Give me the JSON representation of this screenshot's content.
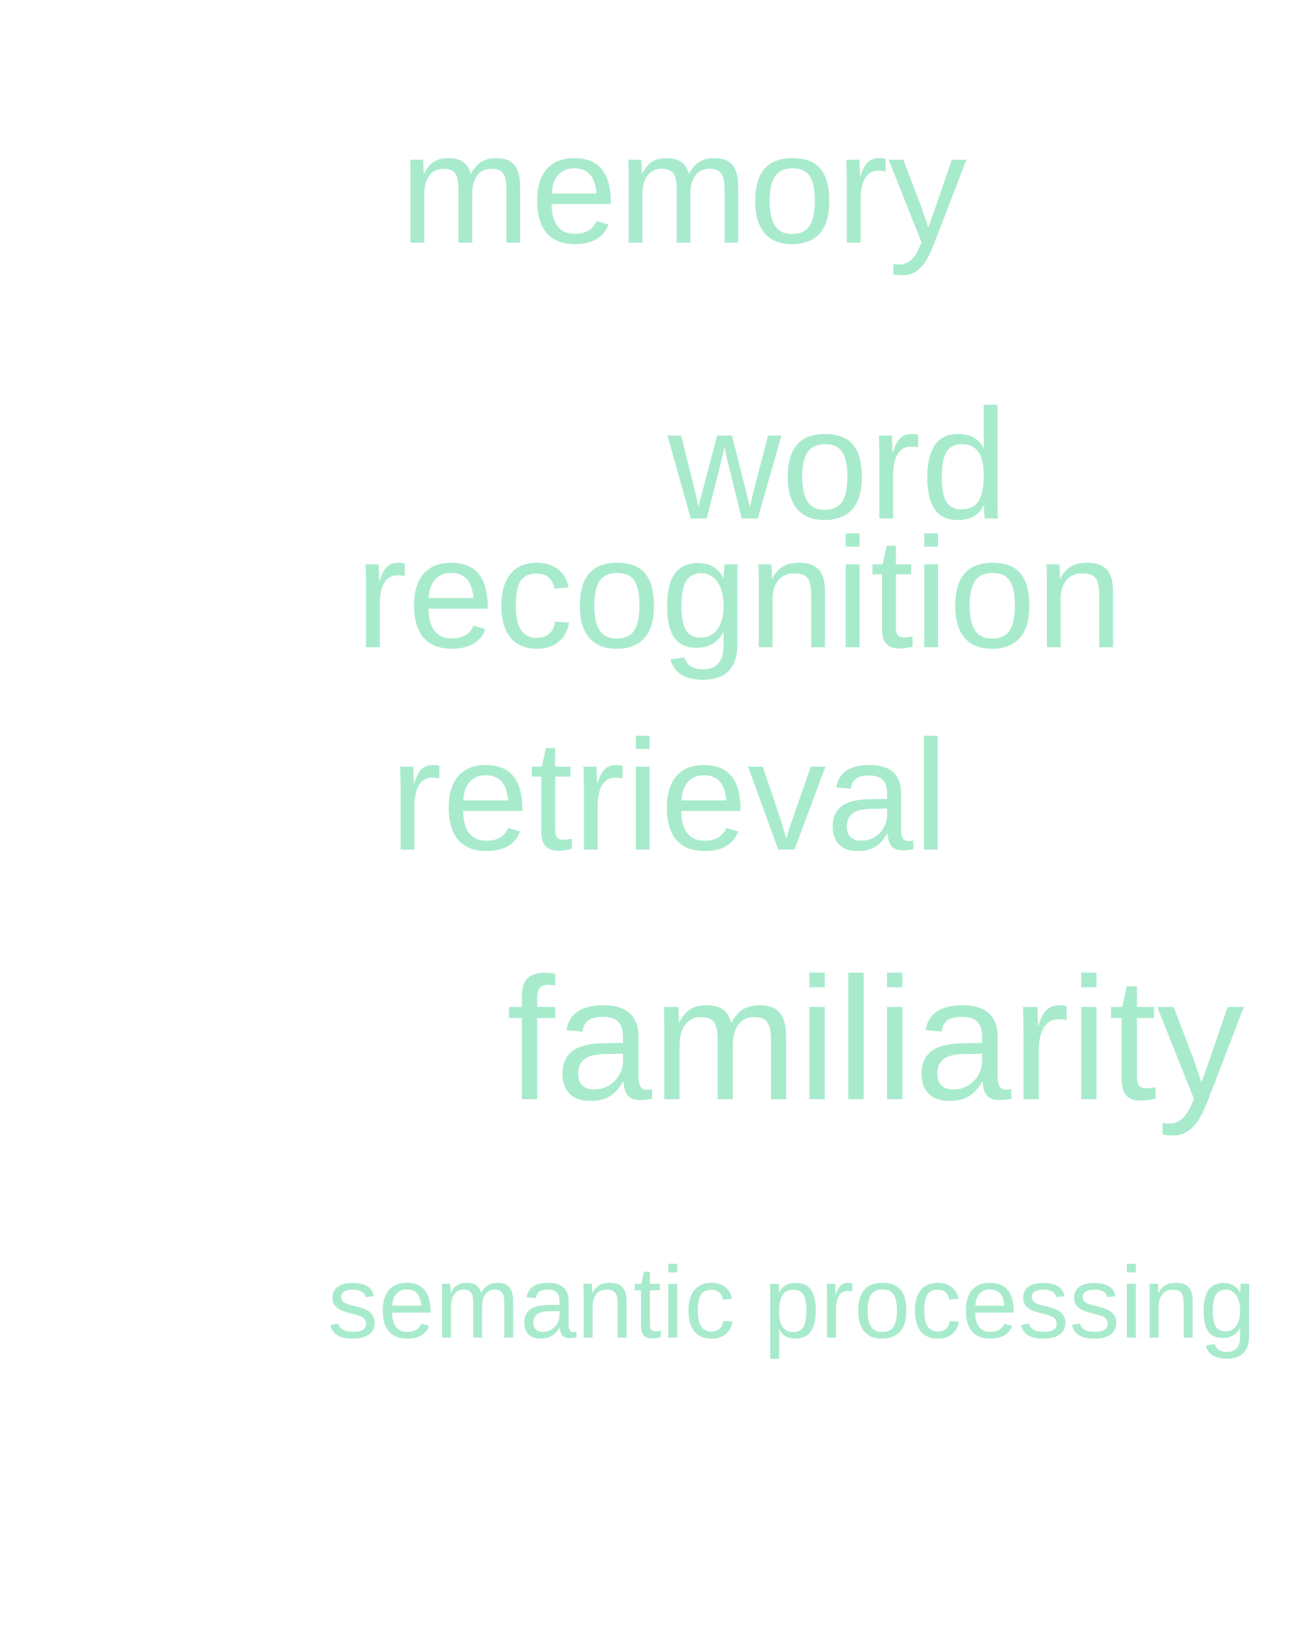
{
  "word_cloud": {
    "color": "#a8ebcc",
    "words": [
      "memory",
      "word",
      "recognition",
      "retrieval",
      "familiarity",
      "semantic processing"
    ]
  }
}
